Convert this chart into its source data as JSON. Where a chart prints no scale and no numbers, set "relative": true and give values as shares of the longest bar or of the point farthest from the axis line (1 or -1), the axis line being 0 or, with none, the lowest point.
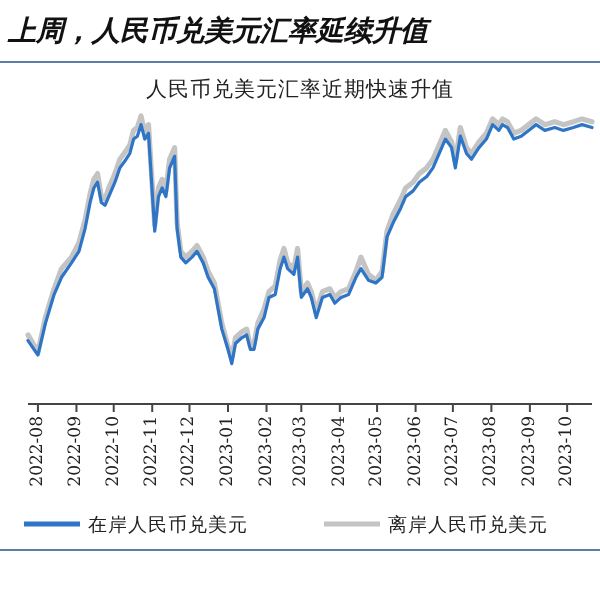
{
  "chart_data": {
    "type": "line",
    "title": "上周，人民币兑美元汇率延续升值",
    "subtitle": "人民币兑美元汇率近期快速升值",
    "relative": true,
    "legend": "bottom",
    "grid": false,
    "line_style": "solid",
    "x": [
      "2022-07-24",
      "2022-08-01",
      "2022-08-07",
      "2022-08-14",
      "2022-08-20",
      "2022-08-28",
      "2022-09-03",
      "2022-09-08",
      "2022-09-12",
      "2022-09-15",
      "2022-09-18",
      "2022-09-21",
      "2022-09-24",
      "2022-09-27",
      "2022-10-02",
      "2022-10-06",
      "2022-10-11",
      "2022-10-14",
      "2022-10-17",
      "2022-10-20",
      "2022-10-23",
      "2022-10-26",
      "2022-10-29",
      "2022-11-03",
      "2022-11-06",
      "2022-11-09",
      "2022-11-12",
      "2022-11-15",
      "2022-11-19",
      "2022-11-21",
      "2022-11-24",
      "2022-11-28",
      "2022-12-03",
      "2022-12-07",
      "2022-12-12",
      "2022-12-16",
      "2022-12-21",
      "2022-12-27",
      "2023-01-01",
      "2023-01-04",
      "2023-01-07",
      "2023-01-12",
      "2023-01-16",
      "2023-01-19",
      "2023-01-22",
      "2023-01-25",
      "2023-01-30",
      "2023-02-03",
      "2023-02-08",
      "2023-02-12",
      "2023-02-15",
      "2023-02-18",
      "2023-02-23",
      "2023-02-26",
      "2023-03-01",
      "2023-03-06",
      "2023-03-09",
      "2023-03-13",
      "2023-03-18",
      "2023-03-24",
      "2023-03-28",
      "2023-04-02",
      "2023-04-08",
      "2023-04-14",
      "2023-04-18",
      "2023-04-24",
      "2023-04-30",
      "2023-05-05",
      "2023-05-09",
      "2023-05-14",
      "2023-05-20",
      "2023-05-24",
      "2023-05-30",
      "2023-06-04",
      "2023-06-10",
      "2023-06-15",
      "2023-06-19",
      "2023-06-25",
      "2023-06-30",
      "2023-07-03",
      "2023-07-07",
      "2023-07-12",
      "2023-07-16",
      "2023-07-22",
      "2023-07-28",
      "2023-08-02",
      "2023-08-07",
      "2023-08-10",
      "2023-08-14",
      "2023-08-19",
      "2023-08-25",
      "2023-08-31",
      "2023-09-06",
      "2023-09-13",
      "2023-09-21",
      "2023-09-28",
      "2023-10-06",
      "2023-10-13",
      "2023-10-21"
    ],
    "xlim": [
      "2022-07-24",
      "2023-10-21"
    ],
    "xticks": [
      "2022-08",
      "2022-09",
      "2022-10",
      "2022-11",
      "2022-12",
      "2023-01",
      "2023-02",
      "2023-03",
      "2023-04",
      "2023-05",
      "2023-06",
      "2023-07",
      "2023-08",
      "2023-09",
      "2023-10"
    ],
    "series": [
      {
        "name": "在岸人民币兑美元",
        "color": "#2e75c8",
        "values": [
          0.22,
          0.17,
          0.28,
          0.38,
          0.44,
          0.49,
          0.53,
          0.61,
          0.7,
          0.75,
          0.77,
          0.7,
          0.69,
          0.72,
          0.77,
          0.82,
          0.85,
          0.87,
          0.92,
          0.93,
          0.97,
          0.92,
          0.94,
          0.6,
          0.72,
          0.75,
          0.72,
          0.82,
          0.86,
          0.61,
          0.51,
          0.49,
          0.51,
          0.53,
          0.49,
          0.44,
          0.4,
          0.26,
          0.19,
          0.14,
          0.21,
          0.23,
          0.24,
          0.19,
          0.19,
          0.26,
          0.3,
          0.37,
          0.38,
          0.47,
          0.51,
          0.47,
          0.45,
          0.51,
          0.37,
          0.4,
          0.37,
          0.3,
          0.37,
          0.38,
          0.35,
          0.37,
          0.38,
          0.44,
          0.47,
          0.43,
          0.42,
          0.44,
          0.58,
          0.63,
          0.68,
          0.72,
          0.74,
          0.77,
          0.79,
          0.82,
          0.86,
          0.92,
          0.89,
          0.82,
          0.93,
          0.87,
          0.85,
          0.89,
          0.92,
          0.97,
          0.95,
          0.97,
          0.96,
          0.92,
          0.93,
          0.95,
          0.97,
          0.95,
          0.96,
          0.95,
          0.96,
          0.97,
          0.96
        ]
      },
      {
        "name": "离岸人民币兑美元",
        "color": "#c4c4c4",
        "values": [
          0.24,
          0.18,
          0.3,
          0.4,
          0.47,
          0.51,
          0.56,
          0.64,
          0.73,
          0.78,
          0.8,
          0.72,
          0.71,
          0.75,
          0.8,
          0.85,
          0.88,
          0.9,
          0.95,
          0.96,
          1.0,
          0.94,
          0.97,
          0.62,
          0.75,
          0.78,
          0.74,
          0.85,
          0.89,
          0.63,
          0.53,
          0.51,
          0.53,
          0.55,
          0.51,
          0.46,
          0.42,
          0.28,
          0.2,
          0.16,
          0.23,
          0.25,
          0.26,
          0.2,
          0.21,
          0.28,
          0.33,
          0.39,
          0.41,
          0.5,
          0.54,
          0.49,
          0.47,
          0.54,
          0.39,
          0.42,
          0.39,
          0.32,
          0.39,
          0.4,
          0.37,
          0.39,
          0.4,
          0.46,
          0.51,
          0.45,
          0.43,
          0.46,
          0.6,
          0.66,
          0.71,
          0.75,
          0.77,
          0.8,
          0.82,
          0.85,
          0.89,
          0.95,
          0.91,
          0.84,
          0.96,
          0.89,
          0.87,
          0.91,
          0.94,
          0.99,
          0.97,
          0.99,
          0.98,
          0.94,
          0.95,
          0.97,
          0.99,
          0.97,
          0.98,
          0.97,
          0.98,
          0.99,
          0.98
        ]
      }
    ]
  }
}
